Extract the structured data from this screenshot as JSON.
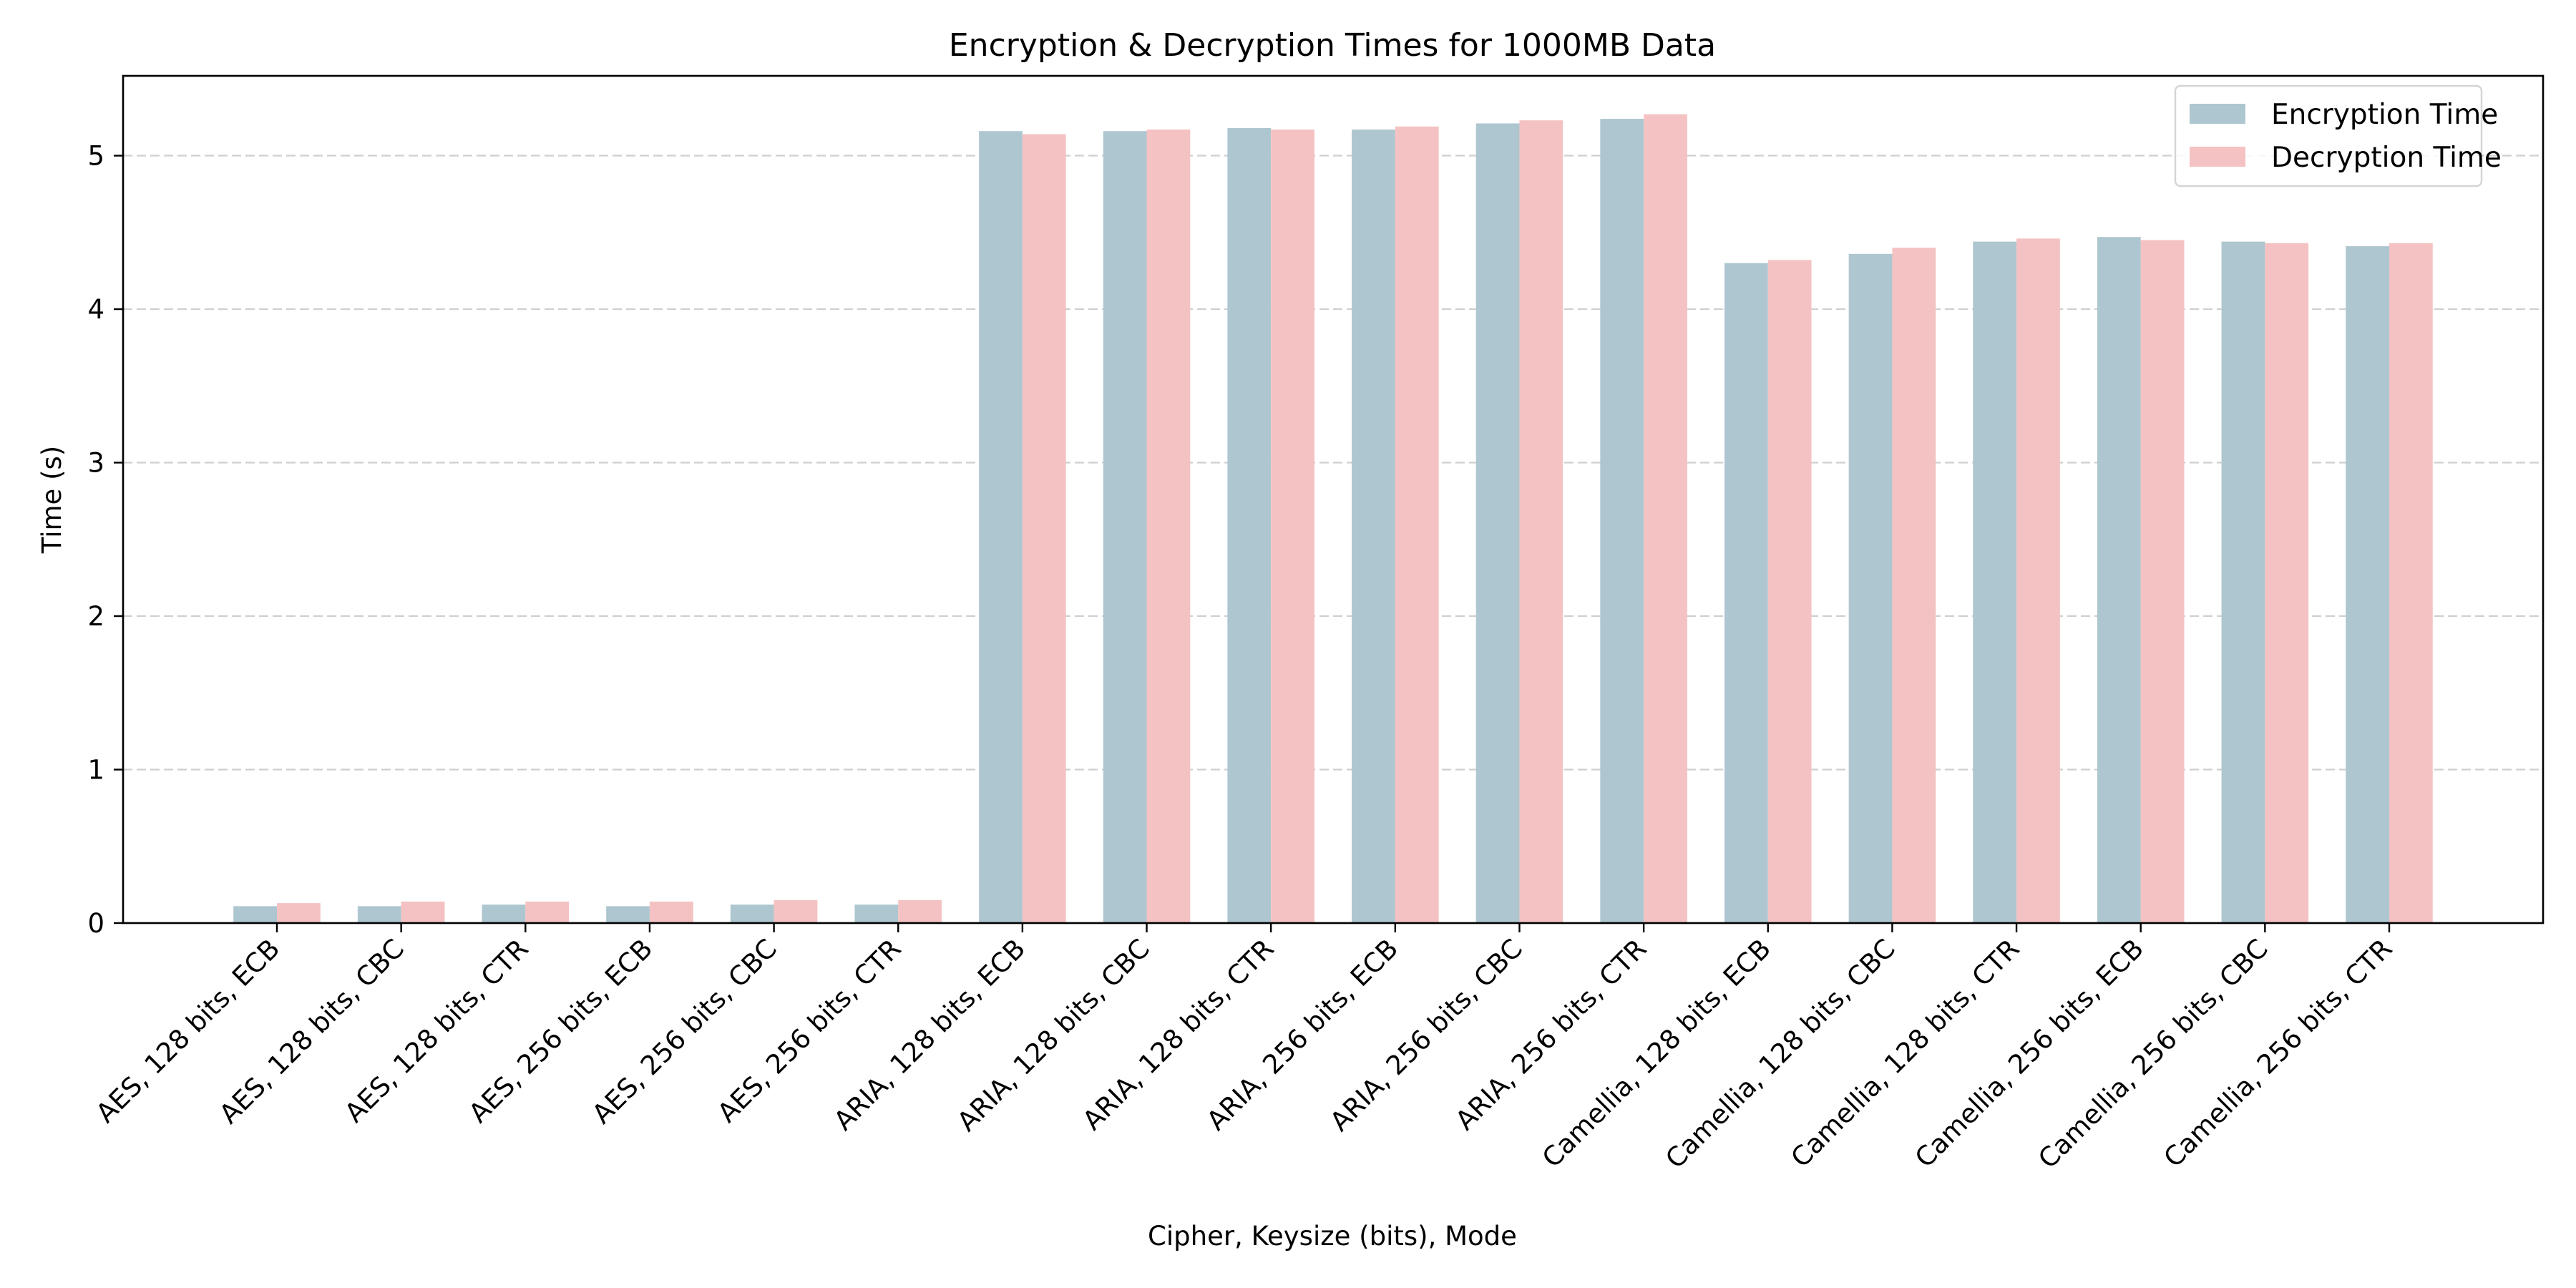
{
  "chart_data": {
    "type": "bar",
    "title": "Encryption & Decryption Times for 1000MB Data",
    "xlabel": "Cipher, Keysize (bits), Mode",
    "ylabel": "Time (s)",
    "ylim": [
      0,
      5.52
    ],
    "yticks": [
      0,
      1,
      2,
      3,
      4,
      5
    ],
    "grid": "y-axis dashed",
    "legend_position": "top-right",
    "categories": [
      "AES, 128 bits, ECB",
      "AES, 128 bits, CBC",
      "AES, 128 bits, CTR",
      "AES, 256 bits, ECB",
      "AES, 256 bits, CBC",
      "AES, 256 bits, CTR",
      "ARIA, 128 bits, ECB",
      "ARIA, 128 bits, CBC",
      "ARIA, 128 bits, CTR",
      "ARIA, 256 bits, ECB",
      "ARIA, 256 bits, CBC",
      "ARIA, 256 bits, CTR",
      "Camellia, 128 bits, ECB",
      "Camellia, 128 bits, CBC",
      "Camellia, 128 bits, CTR",
      "Camellia, 256 bits, ECB",
      "Camellia, 256 bits, CBC",
      "Camellia, 256 bits, CTR"
    ],
    "series": [
      {
        "name": "Encryption Time",
        "color": "#aec6cf",
        "values": [
          0.11,
          0.11,
          0.12,
          0.11,
          0.12,
          0.12,
          5.16,
          5.16,
          5.18,
          5.17,
          5.21,
          5.24,
          4.3,
          4.36,
          4.44,
          4.47,
          4.44,
          4.41
        ]
      },
      {
        "name": "Decryption Time",
        "color": "#f4c2c2",
        "values": [
          0.13,
          0.14,
          0.14,
          0.14,
          0.15,
          0.15,
          5.14,
          5.17,
          5.17,
          5.19,
          5.23,
          5.27,
          4.32,
          4.4,
          4.46,
          4.45,
          4.43,
          4.43
        ]
      }
    ]
  }
}
